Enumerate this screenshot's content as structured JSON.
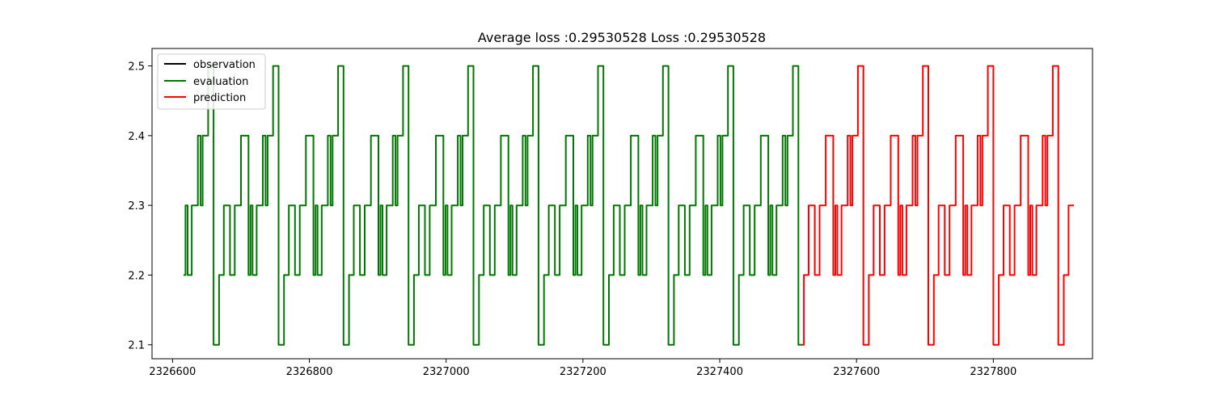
{
  "chart_data": {
    "type": "line",
    "title": "Average loss :0.29530528   Loss :0.29530528",
    "xlabel": "",
    "ylabel": "",
    "xlim": [
      2326570,
      2327945
    ],
    "ylim": [
      2.08,
      2.525
    ],
    "x_ticks": [
      2326600,
      2326800,
      2327000,
      2327200,
      2327400,
      2327600,
      2327800
    ],
    "x_tick_labels": [
      "2326600",
      "2326800",
      "2327000",
      "2327200",
      "2327400",
      "2327600",
      "2327800"
    ],
    "y_ticks": [
      2.1,
      2.2,
      2.3,
      2.4,
      2.5
    ],
    "y_tick_labels": [
      "2.1",
      "2.2",
      "2.3",
      "2.4",
      "2.5"
    ],
    "grid": false,
    "legend_position": "top-left",
    "pattern": [
      [
        0,
        2.2
      ],
      [
        2,
        2.2
      ],
      [
        3,
        2.3
      ],
      [
        5,
        2.3
      ],
      [
        6,
        2.2
      ],
      [
        11,
        2.2
      ],
      [
        12,
        2.3
      ],
      [
        20,
        2.3
      ],
      [
        21,
        2.4
      ],
      [
        24,
        2.4
      ],
      [
        25,
        2.3
      ],
      [
        27,
        2.3
      ],
      [
        28,
        2.4
      ],
      [
        35,
        2.4
      ],
      [
        36,
        2.5
      ],
      [
        43,
        2.5
      ],
      [
        44,
        2.1
      ],
      [
        51,
        2.1
      ],
      [
        52,
        2.2
      ],
      [
        58,
        2.2
      ],
      [
        59,
        2.3
      ],
      [
        67,
        2.3
      ],
      [
        68,
        2.2
      ],
      [
        74,
        2.2
      ],
      [
        75,
        2.3
      ],
      [
        83,
        2.3
      ],
      [
        84,
        2.4
      ],
      [
        94,
        2.4
      ],
      [
        95,
        2.4
      ]
    ],
    "series": [
      {
        "name": "observation",
        "color": "#000000",
        "x_start": 2326616,
        "x_end": 2326616
      },
      {
        "name": "evaluation",
        "color": "#007700",
        "x_start": 2326616,
        "x_end": 2327520
      },
      {
        "name": "prediction",
        "color": "#ff0000",
        "x_start": 2327520,
        "x_end": 2327918
      }
    ]
  }
}
